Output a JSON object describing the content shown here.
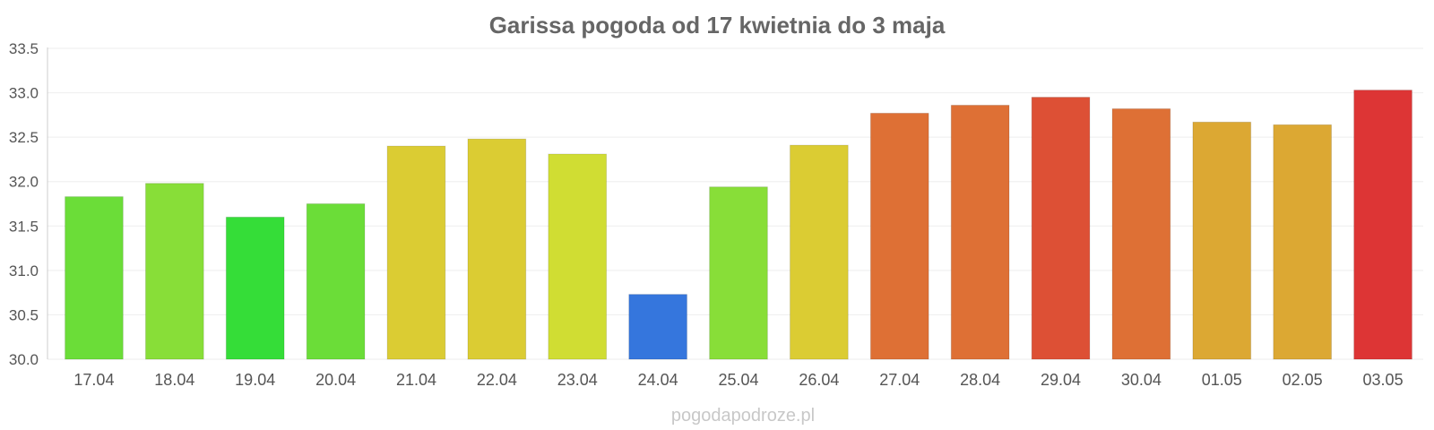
{
  "chart_data": {
    "type": "bar",
    "title": "Garissa pogoda od 17 kwietnia do 3 maja",
    "xlabel": "",
    "ylabel": "",
    "ylim": [
      30.0,
      33.5
    ],
    "yticks": [
      "30.0",
      "30.5",
      "31.0",
      "31.5",
      "32.0",
      "32.5",
      "33.0",
      "33.5"
    ],
    "grid": true,
    "legend": "none",
    "categories": [
      "17.04",
      "18.04",
      "19.04",
      "20.04",
      "21.04",
      "22.04",
      "23.04",
      "24.04",
      "25.04",
      "26.04",
      "27.04",
      "28.04",
      "29.04",
      "30.04",
      "01.05",
      "02.05",
      "03.05"
    ],
    "values": [
      31.83,
      31.98,
      31.6,
      31.75,
      32.4,
      32.48,
      32.31,
      30.73,
      31.94,
      32.41,
      32.77,
      32.86,
      32.95,
      32.82,
      32.67,
      32.64,
      33.03
    ],
    "colors": [
      "#6bdd38",
      "#88de38",
      "#35dd38",
      "#6bdd38",
      "#dbcc33",
      "#dbcc33",
      "#d0dd33",
      "#3576dd",
      "#88de38",
      "#dbcc33",
      "#de7035",
      "#de7035",
      "#dd5035",
      "#de7035",
      "#dca833",
      "#dca833",
      "#dd3535"
    ]
  },
  "source": "pogodapodroze.pl"
}
